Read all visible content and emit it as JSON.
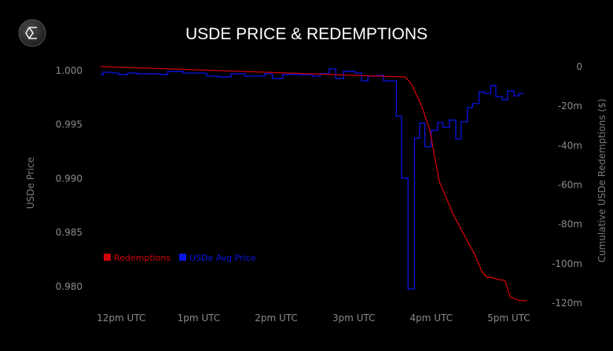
{
  "chart_data": {
    "type": "line",
    "title": "USDE PRICE & REDEMPTIONS",
    "ylabel": "USDe Price",
    "y2label": "Cumulative USDe Redemptions ($)",
    "xlabel": "",
    "x_ticks": [
      {
        "label": "12pm UTC",
        "time": "12:00"
      },
      {
        "label": "1pm UTC",
        "time": "13:00"
      },
      {
        "label": "2pm UTC",
        "time": "14:00"
      },
      {
        "label": "3pm UTC",
        "time": "15:00"
      },
      {
        "label": "4pm UTC",
        "time": "16:00"
      },
      {
        "label": "5pm UTC",
        "time": "17:00"
      }
    ],
    "xlim": [
      "11:27",
      "17:32"
    ],
    "ylim": [
      0.97818,
      1.00087
    ],
    "y_ticks": [
      {
        "label": "1.000",
        "value": 1.0
      },
      {
        "label": "0.995",
        "value": 0.995
      },
      {
        "label": "0.990",
        "value": 0.99
      },
      {
        "label": "0.985",
        "value": 0.985
      },
      {
        "label": "0.980",
        "value": 0.98
      }
    ],
    "y2lim": [
      -121.5,
      2.7
    ],
    "y2_unit": "millions USD",
    "y2_ticks": [
      {
        "label": "0",
        "value": 0
      },
      {
        "label": "-20m",
        "value": -20
      },
      {
        "label": "-40m",
        "value": -40
      },
      {
        "label": "-60m",
        "value": -60
      },
      {
        "label": "-80m",
        "value": -80
      },
      {
        "label": "-100m",
        "value": -100
      },
      {
        "label": "-120m",
        "value": -120
      }
    ],
    "grid": false,
    "legend_position": "bottom-left",
    "series": [
      {
        "name": "Redemptions",
        "axis": "right",
        "color": "#d0000a",
        "style": "line",
        "points": [
          [
            "11:44",
            0
          ],
          [
            "15:40",
            -5.3
          ],
          [
            "15:45",
            -9.2
          ],
          [
            "15:53",
            -20.8
          ],
          [
            "15:59",
            -32.7
          ],
          [
            "16:06",
            -57.8
          ],
          [
            "16:17",
            -75.0
          ],
          [
            "16:29",
            -89.7
          ],
          [
            "16:34",
            -95.7
          ],
          [
            "16:39",
            -103.7
          ],
          [
            "16:43",
            -106.9
          ],
          [
            "16:47",
            -106.9
          ],
          [
            "16:52",
            -108.0
          ],
          [
            "16:57",
            -108.4
          ],
          [
            "17:01",
            -116.8
          ],
          [
            "17:07",
            -118.4
          ],
          [
            "17:14",
            -118.8
          ]
        ]
      },
      {
        "name": "USDe Avg Price",
        "axis": "left",
        "color": "#0a14e6",
        "style": "step",
        "points": [
          [
            "11:44",
            0.99964
          ],
          [
            "11:46",
            0.99985
          ],
          [
            "11:53",
            0.99978
          ],
          [
            "11:58",
            0.99964
          ],
          [
            "12:05",
            0.99978
          ],
          [
            "12:12",
            0.99971
          ],
          [
            "12:30",
            0.99964
          ],
          [
            "12:36",
            0.99993
          ],
          [
            "12:48",
            0.99978
          ],
          [
            "13:06",
            0.99949
          ],
          [
            "13:15",
            0.99942
          ],
          [
            "13:25",
            0.99971
          ],
          [
            "13:36",
            0.99949
          ],
          [
            "13:51",
            0.99971
          ],
          [
            "13:57",
            0.99927
          ],
          [
            "14:05",
            0.99964
          ],
          [
            "14:28",
            0.99949
          ],
          [
            "14:34",
            0.99971
          ],
          [
            "14:41",
            1.00015
          ],
          [
            "14:46",
            0.99927
          ],
          [
            "14:52",
            0.99993
          ],
          [
            "15:01",
            0.99978
          ],
          [
            "15:06",
            0.99905
          ],
          [
            "15:11",
            0.99949
          ],
          [
            "15:18",
            0.99956
          ],
          [
            "15:23",
            0.99905
          ],
          [
            "15:33",
            0.99578
          ],
          [
            "15:37",
            0.99004
          ],
          [
            "15:42",
            0.97978
          ],
          [
            "15:47",
            0.99375
          ],
          [
            "15:51",
            0.99513
          ],
          [
            "15:55",
            0.99295
          ],
          [
            "16:00",
            0.99447
          ],
          [
            "16:05",
            0.9952
          ],
          [
            "16:09",
            0.99476
          ],
          [
            "16:14",
            0.99542
          ],
          [
            "16:19",
            0.99367
          ],
          [
            "16:23",
            0.99527
          ],
          [
            "16:28",
            0.99658
          ],
          [
            "16:32",
            0.99695
          ],
          [
            "16:37",
            0.99804
          ],
          [
            "16:41",
            0.99789
          ],
          [
            "16:46",
            0.99862
          ],
          [
            "16:50",
            0.9976
          ],
          [
            "16:55",
            0.99731
          ],
          [
            "16:59",
            0.99811
          ],
          [
            "17:04",
            0.99767
          ],
          [
            "17:08",
            0.99789
          ],
          [
            "17:12",
            0.99789
          ]
        ]
      }
    ]
  },
  "logo": {
    "icon": "sigma-logo-icon"
  },
  "background": "#000000"
}
